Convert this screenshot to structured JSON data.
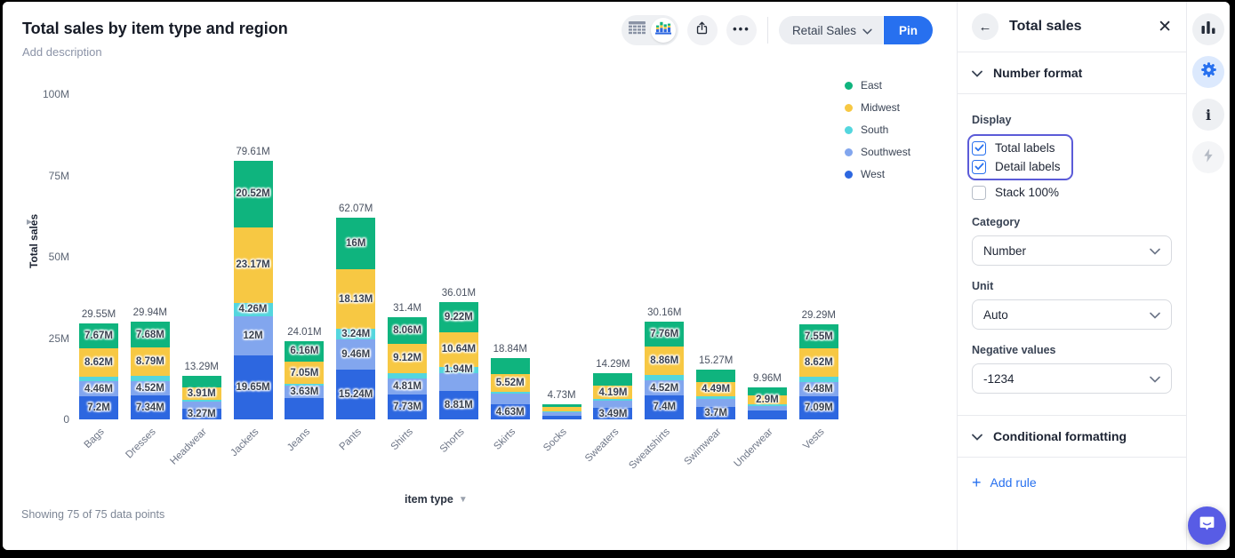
{
  "header": {
    "title": "Total sales by item type and region",
    "description_placeholder": "Add description"
  },
  "toolbar": {
    "dataset_label": "Retail Sales",
    "pin_label": "Pin"
  },
  "chart_data": {
    "type": "bar",
    "stacked": true,
    "title": "Total sales by item type and region",
    "x_axis_label": "item type",
    "y_axis_label": "Total sales",
    "unit": "M",
    "y_max": 100,
    "y_ticks": [
      {
        "label": "100M",
        "value": 100
      },
      {
        "label": "75M",
        "value": 75
      },
      {
        "label": "50M",
        "value": 50
      },
      {
        "label": "25M",
        "value": 25
      },
      {
        "label": "0",
        "value": 0
      }
    ],
    "legend_position": "right",
    "regions_bottom_to_top": [
      {
        "name": "West",
        "color": "#2d67e0"
      },
      {
        "name": "Southwest",
        "color": "#82a6ee"
      },
      {
        "name": "South",
        "color": "#54d6de"
      },
      {
        "name": "Midwest",
        "color": "#f7c843"
      },
      {
        "name": "East",
        "color": "#0fb47e"
      }
    ],
    "bars": [
      {
        "category": "Bags",
        "total": 29.55,
        "total_label": "29.55M",
        "segments": [
          {
            "region": "West",
            "value": 7.2,
            "label": "7.2M"
          },
          {
            "region": "Southwest",
            "value": 4.46,
            "label": "4.46M"
          },
          {
            "region": "South",
            "value": 1.6,
            "label": null
          },
          {
            "region": "Midwest",
            "value": 8.62,
            "label": "8.62M"
          },
          {
            "region": "East",
            "value": 7.67,
            "label": "7.67M"
          }
        ]
      },
      {
        "category": "Dresses",
        "total": 29.94,
        "total_label": "29.94M",
        "segments": [
          {
            "region": "West",
            "value": 7.34,
            "label": "7.34M"
          },
          {
            "region": "Southwest",
            "value": 4.52,
            "label": "4.52M"
          },
          {
            "region": "South",
            "value": 1.61,
            "label": null
          },
          {
            "region": "Midwest",
            "value": 8.79,
            "label": "8.79M"
          },
          {
            "region": "East",
            "value": 7.68,
            "label": "7.68M"
          }
        ]
      },
      {
        "category": "Headwear",
        "total": 13.29,
        "total_label": "13.29M",
        "segments": [
          {
            "region": "West",
            "value": 3.27,
            "label": "3.27M"
          },
          {
            "region": "Southwest",
            "value": 2.2,
            "label": null
          },
          {
            "region": "South",
            "value": 0.6,
            "label": null
          },
          {
            "region": "Midwest",
            "value": 3.91,
            "label": "3.91M"
          },
          {
            "region": "East",
            "value": 3.31,
            "label": null
          }
        ]
      },
      {
        "category": "Jackets",
        "total": 79.61,
        "total_label": "79.61M",
        "segments": [
          {
            "region": "West",
            "value": 19.65,
            "label": "19.65M"
          },
          {
            "region": "Southwest",
            "value": 12.0,
            "label": "12M"
          },
          {
            "region": "South",
            "value": 4.26,
            "label": "4.26M"
          },
          {
            "region": "Midwest",
            "value": 23.17,
            "label": "23.17M"
          },
          {
            "region": "East",
            "value": 20.52,
            "label": "20.52M"
          }
        ]
      },
      {
        "category": "Jeans",
        "total": 24.01,
        "total_label": "24.01M",
        "segments": [
          {
            "region": "West",
            "value": 6.67,
            "label": null
          },
          {
            "region": "Southwest",
            "value": 3.63,
            "label": "3.63M"
          },
          {
            "region": "South",
            "value": 0.5,
            "label": null
          },
          {
            "region": "Midwest",
            "value": 7.05,
            "label": "7.05M"
          },
          {
            "region": "East",
            "value": 6.16,
            "label": "6.16M"
          }
        ]
      },
      {
        "category": "Pants",
        "total": 62.07,
        "total_label": "62.07M",
        "segments": [
          {
            "region": "West",
            "value": 15.24,
            "label": "15.24M"
          },
          {
            "region": "Southwest",
            "value": 9.46,
            "label": "9.46M"
          },
          {
            "region": "South",
            "value": 3.24,
            "label": "3.24M"
          },
          {
            "region": "Midwest",
            "value": 18.13,
            "label": "18.13M"
          },
          {
            "region": "East",
            "value": 16.0,
            "label": "16M"
          }
        ]
      },
      {
        "category": "Shirts",
        "total": 31.4,
        "total_label": "31.4M",
        "segments": [
          {
            "region": "West",
            "value": 7.73,
            "label": "7.73M"
          },
          {
            "region": "Southwest",
            "value": 4.81,
            "label": "4.81M"
          },
          {
            "region": "South",
            "value": 1.68,
            "label": null
          },
          {
            "region": "Midwest",
            "value": 9.12,
            "label": "9.12M"
          },
          {
            "region": "East",
            "value": 8.06,
            "label": "8.06M"
          }
        ]
      },
      {
        "category": "Shorts",
        "total": 36.01,
        "total_label": "36.01M",
        "segments": [
          {
            "region": "West",
            "value": 8.81,
            "label": "8.81M"
          },
          {
            "region": "Southwest",
            "value": 5.4,
            "label": null
          },
          {
            "region": "South",
            "value": 1.94,
            "label": "1.94M"
          },
          {
            "region": "Midwest",
            "value": 10.64,
            "label": "10.64M"
          },
          {
            "region": "East",
            "value": 9.22,
            "label": "9.22M"
          }
        ]
      },
      {
        "category": "Skirts",
        "total": 18.84,
        "total_label": "18.84M",
        "segments": [
          {
            "region": "West",
            "value": 4.63,
            "label": "4.63M"
          },
          {
            "region": "Southwest",
            "value": 3.2,
            "label": null
          },
          {
            "region": "South",
            "value": 0.7,
            "label": null
          },
          {
            "region": "Midwest",
            "value": 5.52,
            "label": "5.52M"
          },
          {
            "region": "East",
            "value": 4.79,
            "label": null
          }
        ]
      },
      {
        "category": "Socks",
        "total": 4.73,
        "total_label": "4.73M",
        "segments": [
          {
            "region": "West",
            "value": 1.2,
            "label": null
          },
          {
            "region": "Southwest",
            "value": 0.9,
            "label": null
          },
          {
            "region": "South",
            "value": 0.33,
            "label": null
          },
          {
            "region": "Midwest",
            "value": 1.3,
            "label": null
          },
          {
            "region": "East",
            "value": 1.0,
            "label": null
          }
        ]
      },
      {
        "category": "Sweaters",
        "total": 14.29,
        "total_label": "14.29M",
        "segments": [
          {
            "region": "West",
            "value": 3.49,
            "label": "3.49M"
          },
          {
            "region": "Southwest",
            "value": 2.2,
            "label": null
          },
          {
            "region": "South",
            "value": 0.55,
            "label": null
          },
          {
            "region": "Midwest",
            "value": 4.19,
            "label": "4.19M"
          },
          {
            "region": "East",
            "value": 3.86,
            "label": null
          }
        ]
      },
      {
        "category": "Sweatshirts",
        "total": 30.16,
        "total_label": "30.16M",
        "segments": [
          {
            "region": "West",
            "value": 7.4,
            "label": "7.4M"
          },
          {
            "region": "Southwest",
            "value": 4.52,
            "label": "4.52M"
          },
          {
            "region": "South",
            "value": 1.62,
            "label": null
          },
          {
            "region": "Midwest",
            "value": 8.86,
            "label": "8.86M"
          },
          {
            "region": "East",
            "value": 7.76,
            "label": "7.76M"
          }
        ]
      },
      {
        "category": "Swimwear",
        "total": 15.27,
        "total_label": "15.27M",
        "segments": [
          {
            "region": "West",
            "value": 3.7,
            "label": "3.7M"
          },
          {
            "region": "Southwest",
            "value": 2.68,
            "label": null
          },
          {
            "region": "South",
            "value": 0.6,
            "label": null
          },
          {
            "region": "Midwest",
            "value": 4.49,
            "label": "4.49M"
          },
          {
            "region": "East",
            "value": 3.8,
            "label": null
          }
        ]
      },
      {
        "category": "Underwear",
        "total": 9.96,
        "total_label": "9.96M",
        "segments": [
          {
            "region": "West",
            "value": 2.6,
            "label": null
          },
          {
            "region": "Southwest",
            "value": 1.6,
            "label": null
          },
          {
            "region": "South",
            "value": 0.35,
            "label": null
          },
          {
            "region": "Midwest",
            "value": 2.9,
            "label": "2.9M"
          },
          {
            "region": "East",
            "value": 2.51,
            "label": null
          }
        ]
      },
      {
        "category": "Vests",
        "total": 29.29,
        "total_label": "29.29M",
        "segments": [
          {
            "region": "West",
            "value": 7.09,
            "label": "7.09M"
          },
          {
            "region": "Southwest",
            "value": 4.48,
            "label": "4.48M"
          },
          {
            "region": "South",
            "value": 1.55,
            "label": null
          },
          {
            "region": "Midwest",
            "value": 8.62,
            "label": "8.62M"
          },
          {
            "region": "East",
            "value": 7.55,
            "label": "7.55M"
          }
        ]
      }
    ]
  },
  "status_bar": {
    "text": "Showing 75 of 75 data points"
  },
  "panel": {
    "title": "Total sales",
    "sections": {
      "number_format": "Number format",
      "conditional_formatting": "Conditional formatting"
    },
    "display": {
      "label": "Display",
      "options": [
        {
          "label": "Total labels",
          "checked": true
        },
        {
          "label": "Detail labels",
          "checked": true
        },
        {
          "label": "Stack 100%",
          "checked": false
        }
      ]
    },
    "fields": [
      {
        "label": "Category",
        "value": "Number"
      },
      {
        "label": "Unit",
        "value": "Auto"
      },
      {
        "label": "Negative values",
        "value": "-1234"
      }
    ],
    "add_rule_label": "Add rule"
  },
  "colors": {
    "accent_blue": "#2770ef",
    "highlight_indigo": "#5b5bd8",
    "chat_indigo": "#585ce5"
  }
}
